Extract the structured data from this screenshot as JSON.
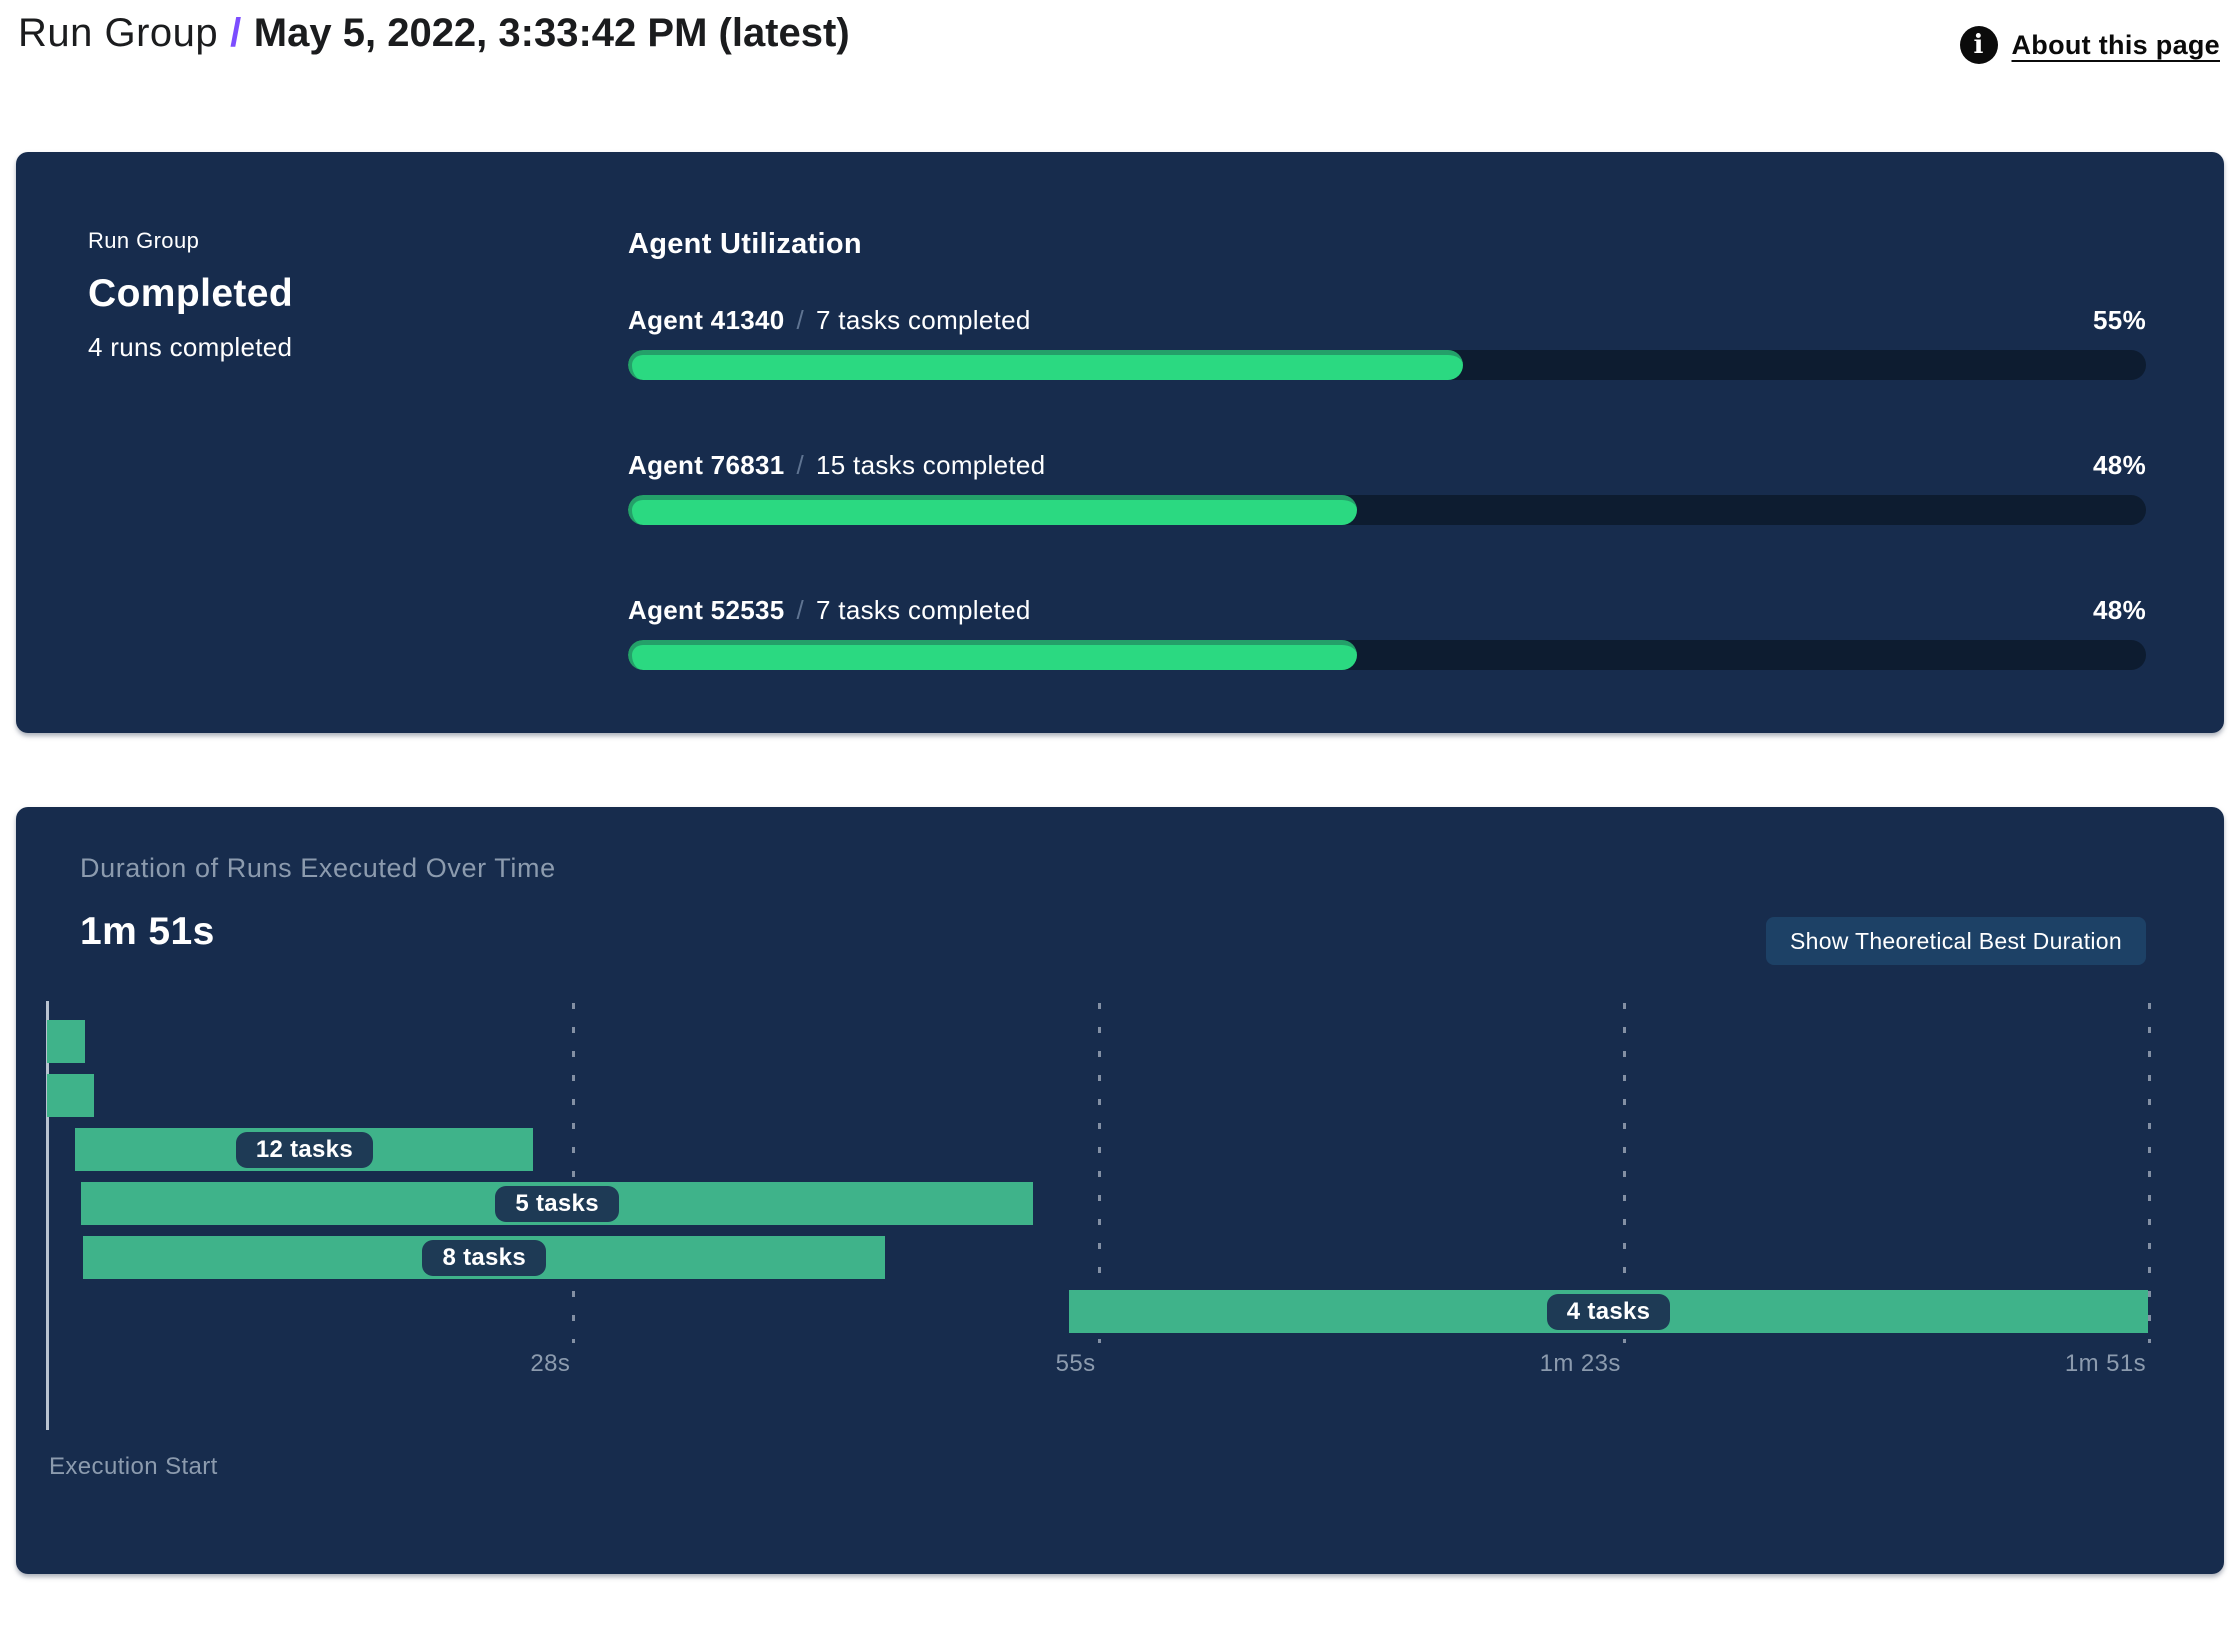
{
  "colors": {
    "accent_purple": "#7C4DFF",
    "panel_bg": "#172C4D",
    "progress_track": "#0D1C30",
    "progress_green": "#2BD981",
    "gantt_green": "#3FB38A",
    "badge_bg": "#1E3A55",
    "button_bg": "#1D4166",
    "muted_text": "#8C9BAE"
  },
  "header": {
    "breadcrumb": "Run Group",
    "separator": "/",
    "title": "May 5, 2022, 3:33:42 PM (latest)",
    "about_link": "About this page",
    "info_icon_glyph": "i"
  },
  "summary_panel": {
    "eyebrow": "Run Group",
    "status": "Completed",
    "runs_completed": "4 runs completed",
    "section_title": "Agent Utilization",
    "label_separator": "/",
    "agents": [
      {
        "name": "Agent 41340",
        "tasks": "7 tasks completed",
        "percent_label": "55%",
        "percent": 55
      },
      {
        "name": "Agent 76831",
        "tasks": "15 tasks completed",
        "percent_label": "48%",
        "percent": 48
      },
      {
        "name": "Agent 52535",
        "tasks": "7 tasks completed",
        "percent_label": "48%",
        "percent": 48
      }
    ]
  },
  "duration_panel": {
    "title": "Duration of Runs Executed Over Time",
    "total_duration": "1m 51s",
    "button_label": "Show Theoretical Best Duration",
    "axis_label": "Execution Start"
  },
  "chart_data": {
    "type": "bar",
    "variant": "gantt-timeline",
    "title": "Duration of Runs Executed Over Time",
    "total_duration_label": "1m 51s",
    "x_unit": "seconds",
    "xlim": [
      0,
      111
    ],
    "grid": "dashed-vertical",
    "legend": "none",
    "x_ticks": [
      {
        "value": 27.75,
        "label": "28s"
      },
      {
        "value": 55.5,
        "label": "55s"
      },
      {
        "value": 83.25,
        "label": "1m 23s"
      },
      {
        "value": 111,
        "label": "1m 51s"
      }
    ],
    "bars": [
      {
        "row": 0,
        "start_s": 0,
        "end_s": 2.0,
        "label": ""
      },
      {
        "row": 1,
        "start_s": 0,
        "end_s": 2.5,
        "label": ""
      },
      {
        "row": 2,
        "start_s": 1.5,
        "end_s": 25.7,
        "label": "12 tasks"
      },
      {
        "row": 3,
        "start_s": 1.8,
        "end_s": 52.1,
        "label": "5 tasks"
      },
      {
        "row": 4,
        "start_s": 1.9,
        "end_s": 44.3,
        "label": "8 tasks"
      },
      {
        "row": 5,
        "start_s": 54.0,
        "end_s": 111.0,
        "label": "4 tasks"
      }
    ],
    "x_axis_origin_label": "Execution Start"
  }
}
